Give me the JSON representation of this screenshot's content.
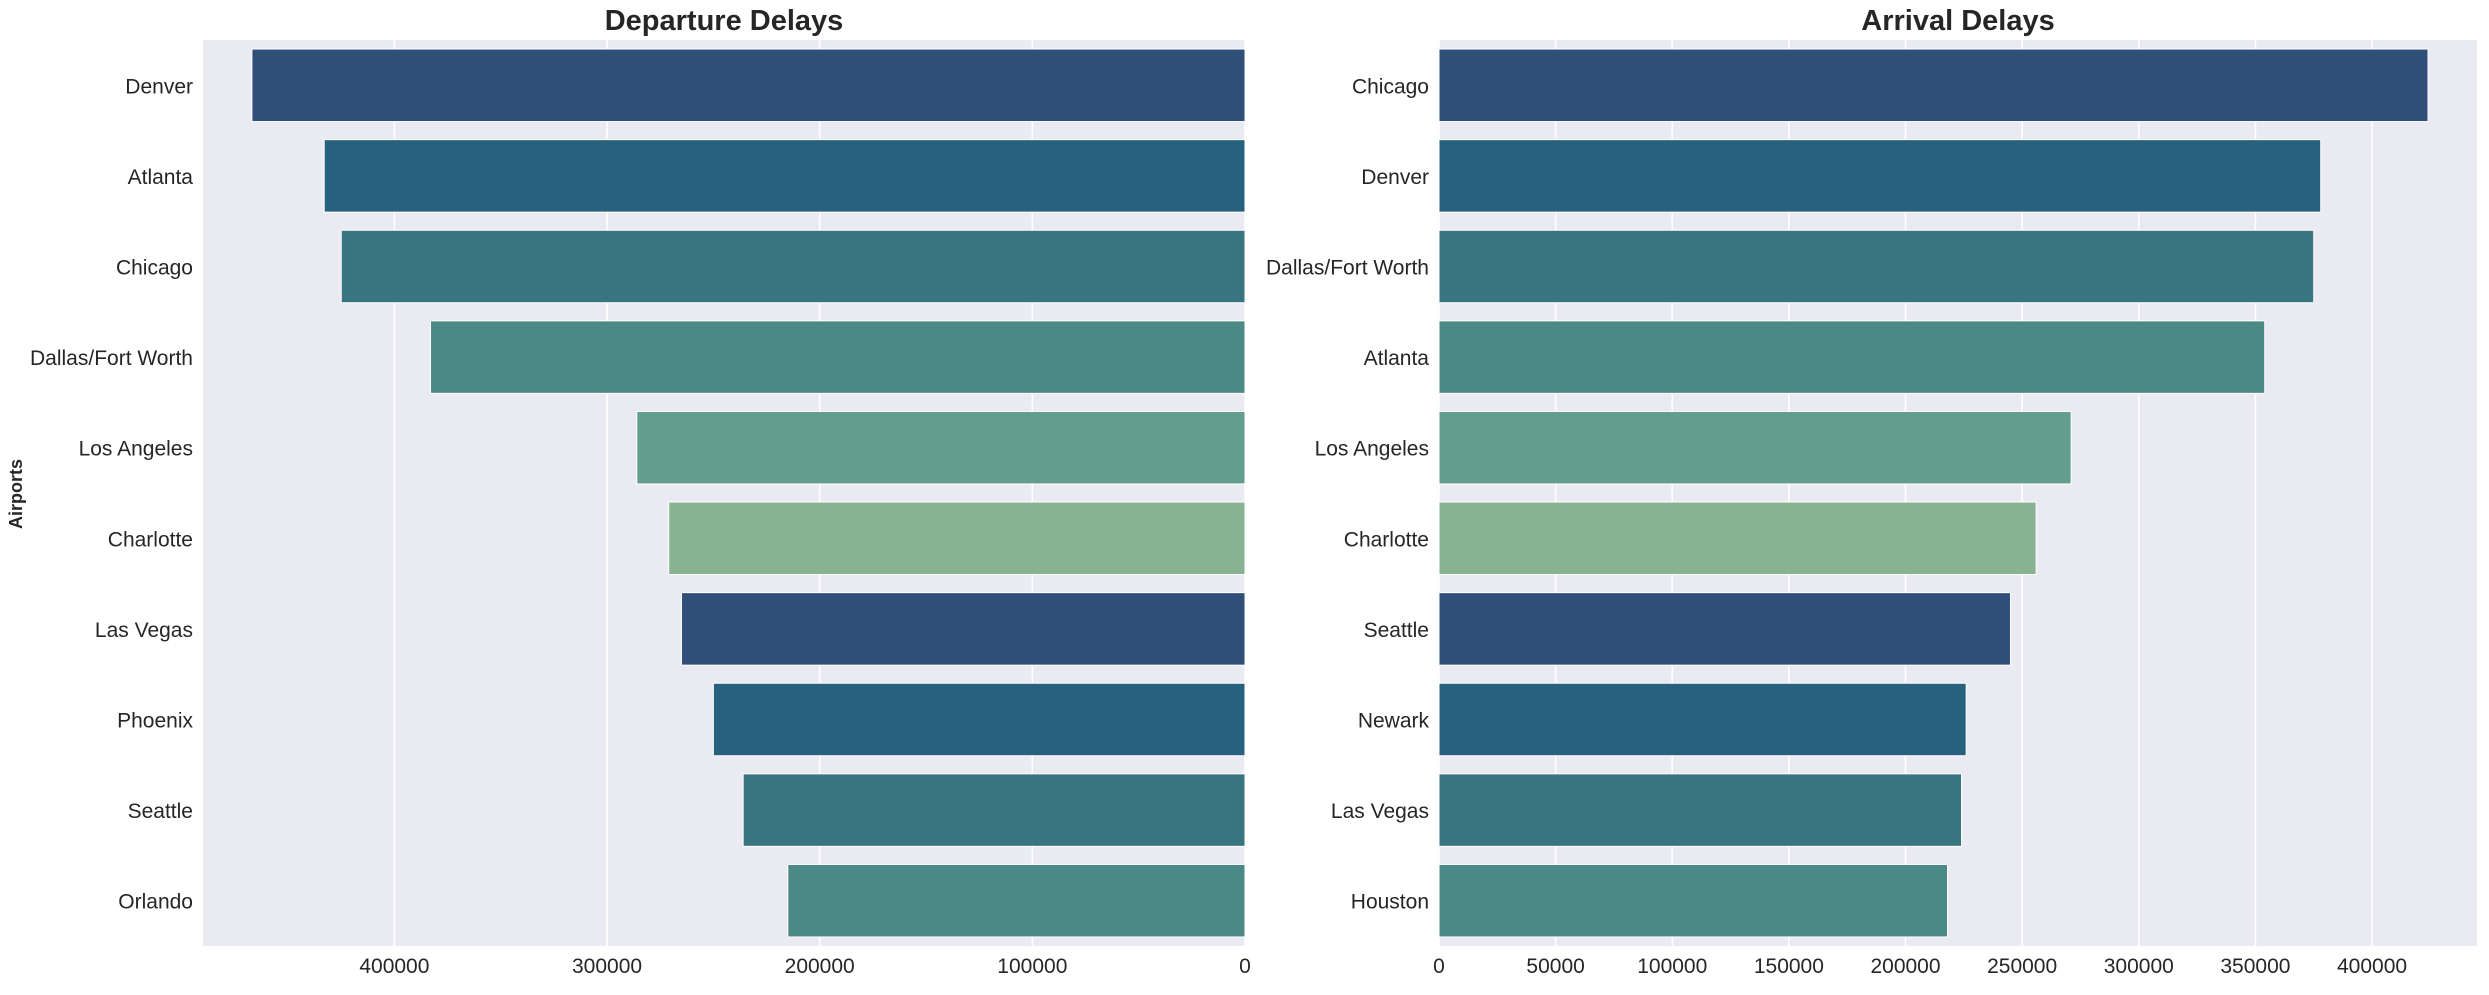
{
  "figure": {
    "shared_ylabel": "Airports",
    "colors": {
      "panel_background": "#eaeaf2",
      "grid": "#ffffff",
      "text": "#262626",
      "bar_palette": [
        "#2f4e78",
        "#28617e",
        "#377580",
        "#4b8986",
        "#639d8d",
        "#87b393"
      ]
    }
  },
  "chart_data": [
    {
      "type": "bar",
      "orientation": "horizontal",
      "title": "Departure Delays",
      "xaxis_inverted": true,
      "xlim": [
        490000,
        0
      ],
      "xticks": [
        400000,
        300000,
        200000,
        100000,
        0
      ],
      "xtick_labels": [
        "400000",
        "300000",
        "200000",
        "100000",
        "0"
      ],
      "xlabel": "",
      "ylabel": "Airports",
      "grid": true,
      "categories": [
        "Denver",
        "Atlanta",
        "Chicago",
        "Dallas/Fort Worth",
        "Los Angeles",
        "Charlotte",
        "Las Vegas",
        "Phoenix",
        "Seattle",
        "Orlando"
      ],
      "values": [
        467000,
        433000,
        425000,
        383000,
        286000,
        271000,
        265000,
        250000,
        236000,
        215000
      ]
    },
    {
      "type": "bar",
      "orientation": "horizontal",
      "title": "Arrival Delays",
      "xaxis_inverted": false,
      "xlim": [
        0,
        445000
      ],
      "xticks": [
        0,
        50000,
        100000,
        150000,
        200000,
        250000,
        300000,
        350000,
        400000
      ],
      "xtick_labels": [
        "0",
        "50000",
        "100000",
        "150000",
        "200000",
        "250000",
        "300000",
        "350000",
        "400000"
      ],
      "xlabel": "",
      "ylabel": "",
      "grid": true,
      "categories": [
        "Chicago",
        "Denver",
        "Dallas/Fort Worth",
        "Atlanta",
        "Los Angeles",
        "Charlotte",
        "Seattle",
        "Newark",
        "Las Vegas",
        "Houston"
      ],
      "values": [
        424000,
        378000,
        375000,
        354000,
        271000,
        256000,
        245000,
        226000,
        224000,
        218000
      ]
    }
  ]
}
